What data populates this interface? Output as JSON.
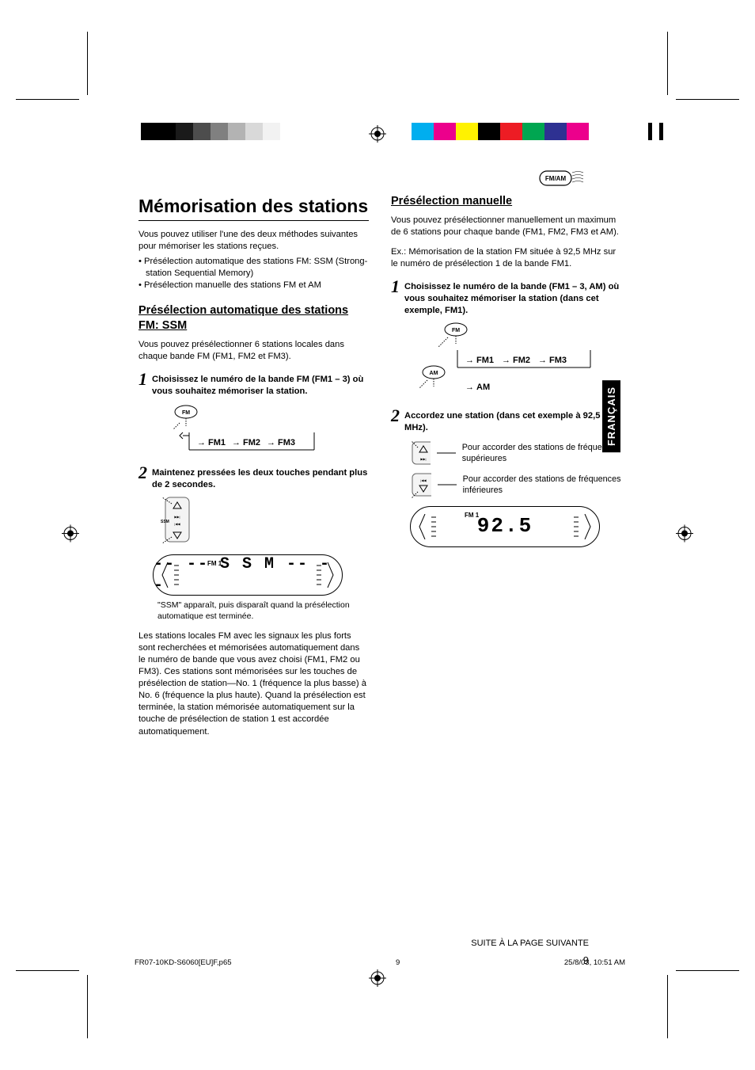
{
  "print_bars": {
    "left_grays": [
      "#000000",
      "#000000",
      "#1a1a1a",
      "#4d4d4d",
      "#808080",
      "#b3b3b3",
      "#d9d9d9",
      "#f2f2f2"
    ],
    "right_colors": [
      "#00aeef",
      "#ec008c",
      "#fff200",
      "#000000",
      "#ed1c24",
      "#00a651",
      "#2e3192",
      "#ec008c"
    ]
  },
  "badge": {
    "label": "FM/AM"
  },
  "title": "Mémorisation des stations",
  "intro": "Vous pouvez utiliser l'une des deux méthodes suivantes pour mémoriser les stations reçues.",
  "intro_bullets": [
    "Présélection automatique des stations FM: SSM (Strong-station Sequential Memory)",
    "Présélection manuelle des stations FM et AM"
  ],
  "ssm": {
    "heading": "Présélection automatique des stations FM: SSM",
    "lead": "Vous pouvez présélectionner 6 stations locales dans chaque bande FM (FM1, FM2 et FM3).",
    "step1": "Choisissez le numéro de la bande FM (FM1 – 3) où vous souhaitez mémoriser la station.",
    "bands": [
      "FM1",
      "FM2",
      "FM3"
    ],
    "fm_label": "FM",
    "step2": "Maintenez pressées les deux touches pendant plus de 2 secondes.",
    "ssm_label": "SSM",
    "lcd_label": "FM 1",
    "lcd_text": "-- -- S S M -- --",
    "note": "\"SSM\" apparaît, puis disparaît quand la présélection automatique est terminée.",
    "para": "Les stations locales FM avec les signaux les plus forts sont recherchées et mémorisées automatiquement dans le numéro de bande que vous avez choisi (FM1, FM2 ou FM3). Ces stations sont mémorisées sur les touches de présélection de station—No. 1 (fréquence la plus basse) à No. 6 (fréquence la plus haute). Quand la présélection est terminée, la station mémorisée automatiquement sur la touche de présélection de station 1 est accordée automatiquement."
  },
  "manual": {
    "heading": "Présélection manuelle",
    "lead": "Vous pouvez présélectionner manuellement un maximum de 6 stations pour chaque bande (FM1, FM2, FM3 et AM).",
    "example": "Ex.: Mémorisation de la station FM située à 92,5 MHz sur le numéro de présélection 1 de la bande FM1.",
    "step1": "Choisissez le numéro de la bande (FM1 – 3, AM) où vous souhaitez mémoriser la station (dans cet exemple, FM1).",
    "fm_label": "FM",
    "am_label": "AM",
    "bands": [
      "FM1",
      "FM2",
      "FM3"
    ],
    "am_text": "AM",
    "step2": "Accordez une station (dans cet exemple à 92,5 MHz).",
    "tune_up": "Pour accorder des stations de fréquences supérieures",
    "tune_down": "Pour accorder des stations de fréquences inférieures",
    "lcd_label": "FM 1",
    "lcd_text": "92.5"
  },
  "lang_tab": "FRANÇAIS",
  "continue": "SUITE À LA PAGE SUIVANTE",
  "page_number": "9",
  "footer": {
    "filename": "FR07-10KD-S6060[EU]F,p65",
    "page": "9",
    "datetime": "25/8/03, 10:51 AM"
  }
}
